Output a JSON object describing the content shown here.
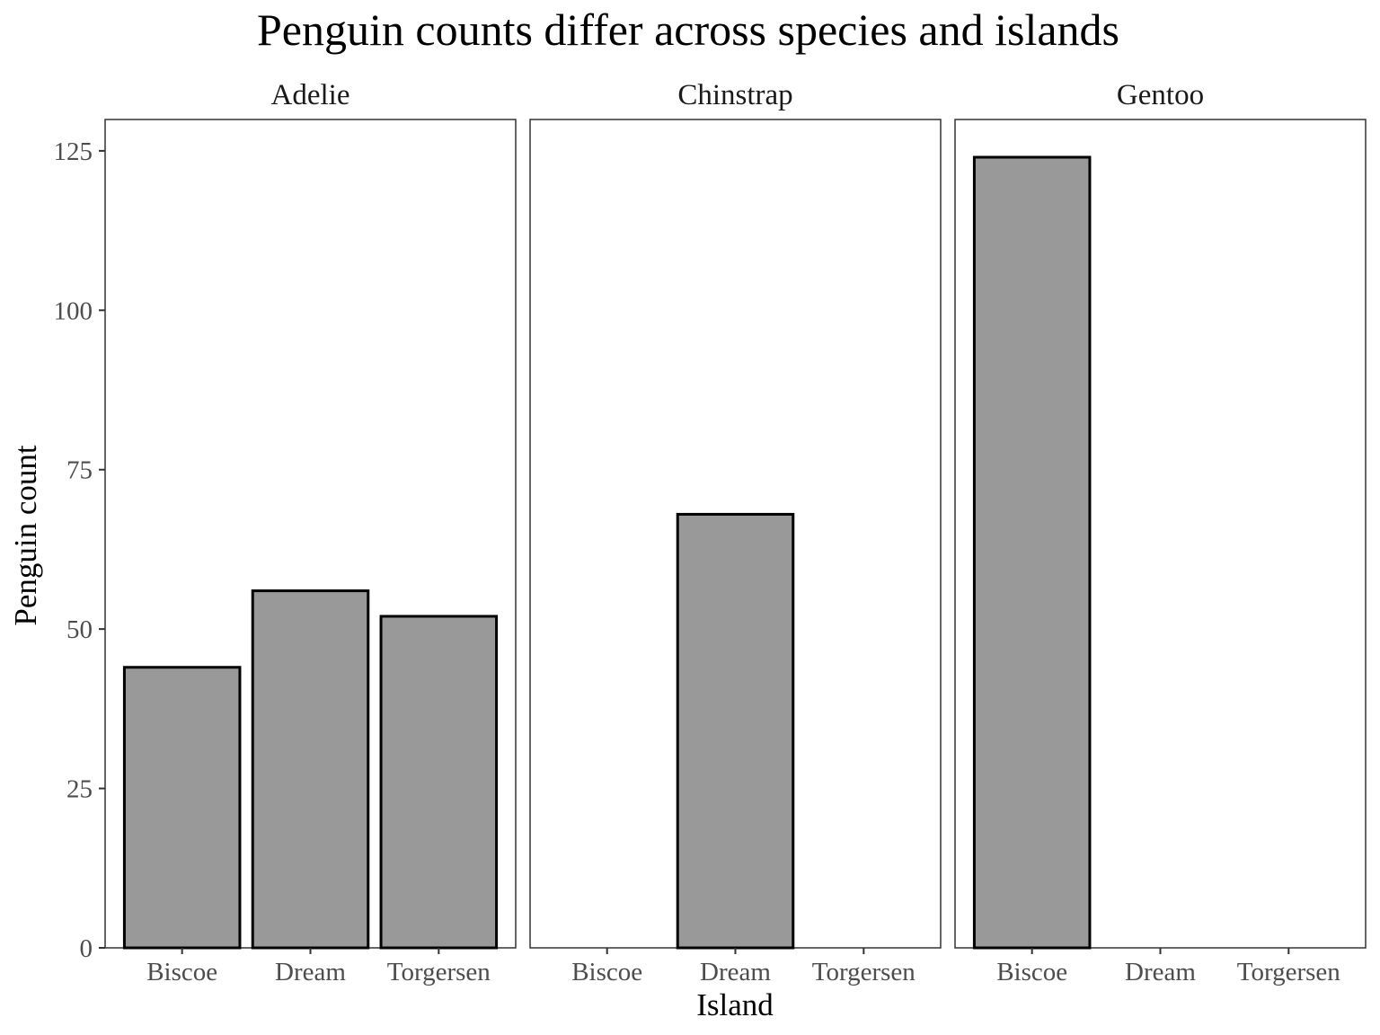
{
  "chart_data": {
    "type": "bar",
    "title": "Penguin counts differ across species and islands",
    "xlabel": "Island",
    "ylabel": "Penguin count",
    "ylim": [
      0,
      130
    ],
    "yticks": [
      0,
      25,
      50,
      75,
      100,
      125
    ],
    "categories": [
      "Biscoe",
      "Dream",
      "Torgersen"
    ],
    "facets": [
      {
        "name": "Adelie",
        "values": [
          44,
          56,
          52
        ]
      },
      {
        "name": "Chinstrap",
        "values": [
          0,
          68,
          0
        ]
      },
      {
        "name": "Gentoo",
        "values": [
          124,
          0,
          0
        ]
      }
    ],
    "grid": false,
    "bar_fill": "#999999",
    "bar_outline": "#000000"
  }
}
